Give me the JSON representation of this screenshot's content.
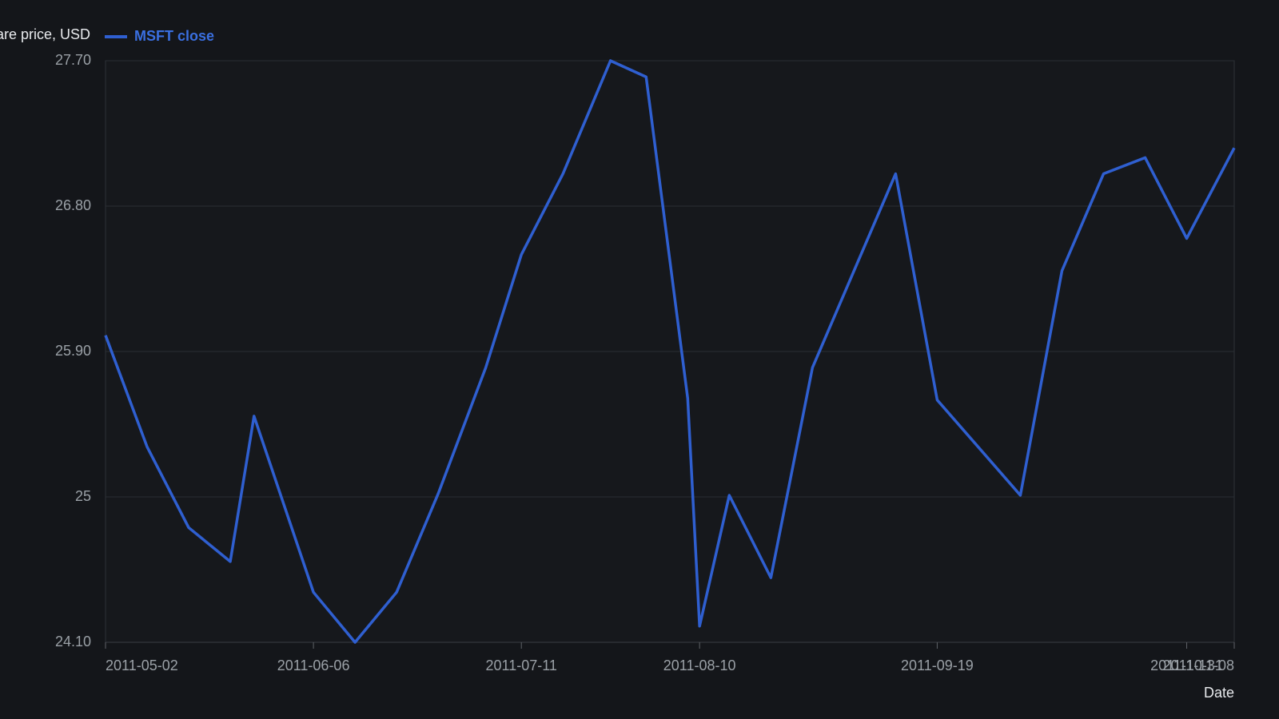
{
  "chart_data": {
    "type": "line",
    "ylabel": "Share price, USD",
    "xlabel": "Date",
    "series": [
      {
        "name": "MSFT close",
        "color": "#2f5fd0",
        "values": [
          26.0,
          25.31,
          24.81,
          24.6,
          25.5,
          24.41,
          24.1,
          24.41,
          25.02,
          25.8,
          26.5,
          27.0,
          27.7,
          27.6,
          25.61,
          24.2,
          25.01,
          24.5,
          25.8,
          27.0,
          25.6,
          25.01,
          26.4,
          27.0,
          27.1,
          26.6,
          27.16
        ]
      }
    ],
    "x": [
      "2011-05-02",
      "2011-05-09",
      "2011-05-16",
      "2011-05-23",
      "2011-05-27",
      "2011-06-06",
      "2011-06-13",
      "2011-06-20",
      "2011-06-27",
      "2011-07-05",
      "2011-07-11",
      "2011-07-18",
      "2011-07-26",
      "2011-08-01",
      "2011-08-08",
      "2011-08-10",
      "2011-08-15",
      "2011-08-22",
      "2011-08-29",
      "2011-09-12",
      "2011-09-19",
      "2011-10-03",
      "2011-10-10",
      "2011-10-17",
      "2011-10-24",
      "2011-10-31",
      "2011-11-08"
    ],
    "xlim": [
      "2011-05-02",
      "2011-11-08"
    ],
    "xticks": [
      "2011-05-02",
      "2011-06-06",
      "2011-07-11",
      "2011-08-10",
      "2011-09-19",
      "2011-10-31",
      "2011-11-08"
    ],
    "ylim": [
      24.1,
      27.7
    ],
    "yticks": [
      {
        "value": 24.1,
        "label": "24.10"
      },
      25,
      {
        "value": 25.9,
        "label": "25.90"
      },
      {
        "value": 26.8,
        "label": "26.80"
      },
      {
        "value": 27.7,
        "label": "27.70"
      }
    ],
    "grid": true,
    "legend": "top-left"
  }
}
